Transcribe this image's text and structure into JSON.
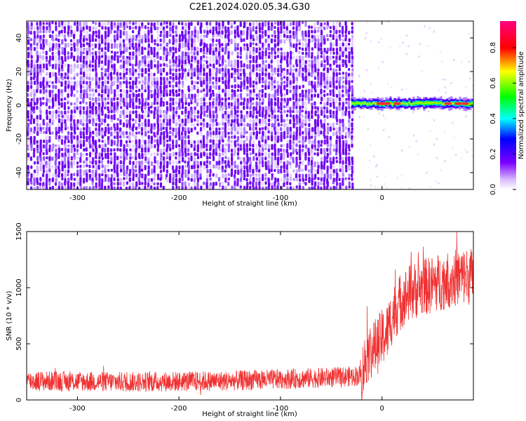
{
  "figure": {
    "title": "C2E1.2024.020.05.34.G30"
  },
  "chart_data": [
    {
      "type": "heatmap",
      "xlabel": "Height of straight line (km)",
      "ylabel": "Frequency (Hz)",
      "xlim": [
        -350,
        90
      ],
      "ylim": [
        -50,
        50
      ],
      "x_ticks": [
        -300,
        -200,
        -100,
        0
      ],
      "y_ticks": [
        -40,
        -20,
        0,
        20,
        40
      ],
      "noise_region_x": [
        -350,
        -30
      ],
      "signal_region_x": [
        -30,
        90
      ],
      "signal_frequency_hz": 1,
      "colorbar": {
        "label": "Normalized spectral amplitude",
        "range": [
          0,
          0.95
        ],
        "ticks": [
          0.0,
          0.2,
          0.4,
          0.6,
          0.8
        ],
        "tick_labels": [
          "0.0",
          "0.2",
          "0.4",
          "0.6",
          "0.8"
        ],
        "colors": [
          "#ffffff",
          "#7a00ff",
          "#0000ff",
          "#00ffff",
          "#00ff00",
          "#ffff00",
          "#ff0000",
          "#ff00a0"
        ]
      }
    },
    {
      "type": "line",
      "xlabel": "Height of straight line (km)",
      "ylabel": "SNR (10 * v/v)",
      "xlim": [
        -350,
        90
      ],
      "ylim": [
        0,
        1500
      ],
      "x_ticks": [
        -300,
        -200,
        -100,
        0
      ],
      "y_ticks": [
        0,
        500,
        1000,
        1500
      ],
      "series": [
        {
          "color": "#f03232",
          "x": [
            -350,
            -300,
            -250,
            -200,
            -150,
            -100,
            -50,
            -30,
            -20,
            -15,
            -10,
            -5,
            0,
            5,
            10,
            15,
            20,
            30,
            40,
            50,
            60,
            70,
            80,
            90
          ],
          "y": [
            170,
            165,
            160,
            165,
            170,
            185,
            200,
            210,
            220,
            400,
            450,
            480,
            550,
            600,
            750,
            830,
            900,
            970,
            1000,
            1030,
            1060,
            1080,
            1100,
            1100
          ]
        }
      ]
    }
  ]
}
